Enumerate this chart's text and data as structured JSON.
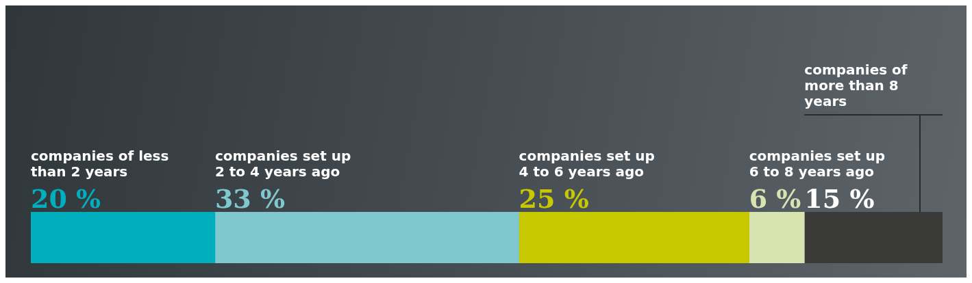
{
  "chart_data": {
    "type": "bar",
    "orientation": "horizontal",
    "stacked": true,
    "categories": [
      null
    ],
    "legend": false,
    "data_labels": true,
    "series": [
      {
        "name": "companies of less than 2 years",
        "color": "#00aebd",
        "values": [
          20
        ],
        "value_labels": [
          "20 %"
        ]
      },
      {
        "name": "companies set up 2 to 4 years ago",
        "color": "#7fc9ce",
        "values": [
          33
        ],
        "value_labels": [
          "33 %"
        ]
      },
      {
        "name": "companies set up 4 to 6 years ago",
        "color": "#c8c800",
        "values": [
          25
        ],
        "value_labels": [
          "25 %"
        ]
      },
      {
        "name": "companies set up 6 to 8 years ago",
        "color": "#d8e4b0",
        "values": [
          6
        ],
        "value_labels": [
          "6 %"
        ]
      },
      {
        "name": "companies of more than 8 years",
        "color": "#3a3a38",
        "values": [
          15
        ],
        "value_labels": [
          "15 %"
        ]
      }
    ]
  }
}
